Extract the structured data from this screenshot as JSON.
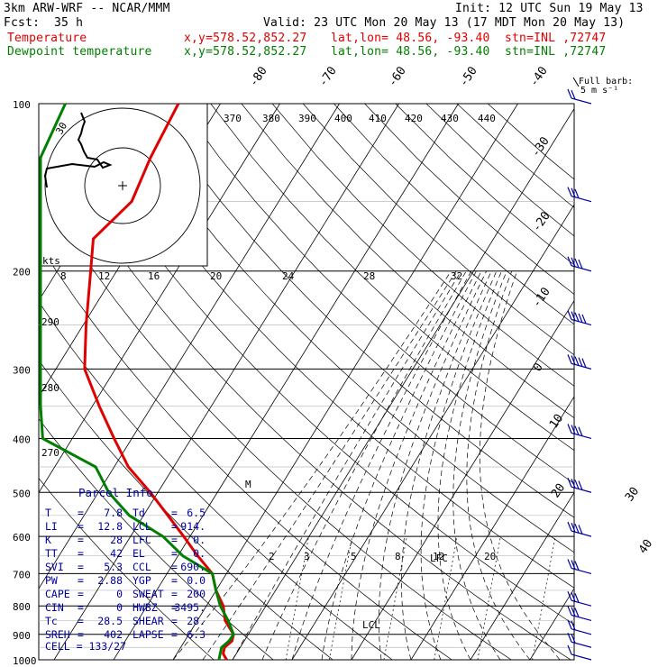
{
  "header": {
    "model": "3km ARW-WRF -- NCAR/MMM",
    "init": "Init: 12 UTC Sun 19 May 13",
    "fcst_label": "Fcst:",
    "fcst_value": "35 h",
    "valid": "Valid: 23 UTC Mon 20 May 13 (17 MDT Mon 20 May 13)",
    "temp_label": "Temperature",
    "dew_label": "Dewpoint temperature",
    "xy": "x,y=578.52,852.27",
    "latlon": "lat,lon= 48.56, -93.40",
    "stn": "stn=INL ,72747",
    "barb_title_1": "Full barb:",
    "barb_title_2": "5 m s⁻¹"
  },
  "colors": {
    "temperature": "#e00000",
    "dewpoint": "#008000",
    "parcel_info": "#0000a0",
    "wind_barbs": "#0000a0"
  },
  "chart_data": {
    "type": "line",
    "title": "",
    "pressure_levels": [
      "100",
      "200",
      "300",
      "400",
      "500",
      "600",
      "700",
      "800",
      "900",
      "1000"
    ],
    "isotherm_labels": [
      "-80",
      "-70",
      "-60",
      "-50",
      "-40",
      "-30",
      "-20",
      "-10",
      "0",
      "10",
      "20",
      "30",
      "40"
    ],
    "theta_e_labels": [
      "370",
      "380",
      "390",
      "400",
      "410",
      "420",
      "430",
      "440"
    ],
    "mixing_ratio_labels": [
      "2",
      "3",
      "5",
      "8",
      "12",
      "20"
    ],
    "hodograph": {
      "ring_label": "kts",
      "speed_labels": [
        "8",
        "12",
        "16",
        "20",
        "24",
        "28",
        "32"
      ],
      "ring_value": "30"
    },
    "theta_labels": [
      "290",
      "280",
      "270"
    ],
    "annotations": {
      "lcl": "LCL",
      "lfc": "LFC",
      "m": "M"
    },
    "series": [
      {
        "name": "Temperature",
        "p": [
          1000,
          975,
          950,
          925,
          900,
          850,
          800,
          750,
          700,
          650,
          600,
          550,
          500,
          450,
          400,
          350,
          300,
          250,
          200,
          175,
          150,
          125,
          100
        ],
        "t": [
          7.8,
          6.5,
          6.0,
          6.5,
          6.0,
          3.0,
          1.0,
          -2.0,
          -4.5,
          -9.0,
          -13.5,
          -18.5,
          -24.0,
          -30.5,
          -36.0,
          -42.0,
          -48.5,
          -53.0,
          -58.0,
          -61.0,
          -58.5,
          -60.0,
          -61.0
        ]
      },
      {
        "name": "Dewpoint temperature",
        "p": [
          1000,
          975,
          950,
          925,
          900,
          850,
          800,
          750,
          700,
          650,
          600,
          550,
          500,
          450,
          400,
          350,
          300,
          250,
          200,
          175,
          150,
          125,
          100
        ],
        "t": [
          6.5,
          6.0,
          5.5,
          6.0,
          6.0,
          3.5,
          0.5,
          -2.0,
          -4.5,
          -11.5,
          -17.0,
          -25.0,
          -31.0,
          -36.0,
          -48.0,
          -62.0,
          -78.0,
          -79.0,
          -80.0,
          -82.0,
          -81.0,
          -80.0,
          -80.0
        ]
      }
    ],
    "wind_barbs_kt": [
      {
        "p": 1000,
        "spd": 10
      },
      {
        "p": 950,
        "spd": 15
      },
      {
        "p": 900,
        "spd": 20
      },
      {
        "p": 850,
        "spd": 25
      },
      {
        "p": 800,
        "spd": 25
      },
      {
        "p": 700,
        "spd": 30
      },
      {
        "p": 600,
        "spd": 35
      },
      {
        "p": 500,
        "spd": 40
      },
      {
        "p": 400,
        "spd": 40
      },
      {
        "p": 300,
        "spd": 45
      },
      {
        "p": 250,
        "spd": 45
      },
      {
        "p": 200,
        "spd": 40
      },
      {
        "p": 150,
        "spd": 25
      },
      {
        "p": 100,
        "spd": 20
      }
    ]
  },
  "parcel_info": {
    "title": "Parcel Info",
    "rows": [
      {
        "k1": "T",
        "v1": "7.8",
        "k2": "Td",
        "v2": "6.5"
      },
      {
        "k1": "LI",
        "v1": "12.8",
        "k2": "LCL",
        "v2": "914."
      },
      {
        "k1": "K",
        "v1": "28",
        "k2": "LFC",
        "v2": "0."
      },
      {
        "k1": "TT",
        "v1": "42",
        "k2": "EL",
        "v2": "0."
      },
      {
        "k1": "SVI",
        "v1": "5.3",
        "k2": "CCL",
        "v2": "690."
      },
      {
        "k1": "PW",
        "v1": "2.88",
        "k2": "YGP",
        "v2": "0.0"
      },
      {
        "k1": "CAPE",
        "v1": "0",
        "k2": "SWEAT",
        "v2": "200"
      },
      {
        "k1": "CIN",
        "v1": "0",
        "k2": "HWBZ",
        "v2": "3495."
      },
      {
        "k1": "Tc",
        "v1": "28.5",
        "k2": "SHEAR",
        "v2": "28."
      },
      {
        "k1": "SREH",
        "v1": "402",
        "k2": "LAPSE",
        "v2": "6.3"
      }
    ],
    "cell": "CELL = 133/27"
  }
}
